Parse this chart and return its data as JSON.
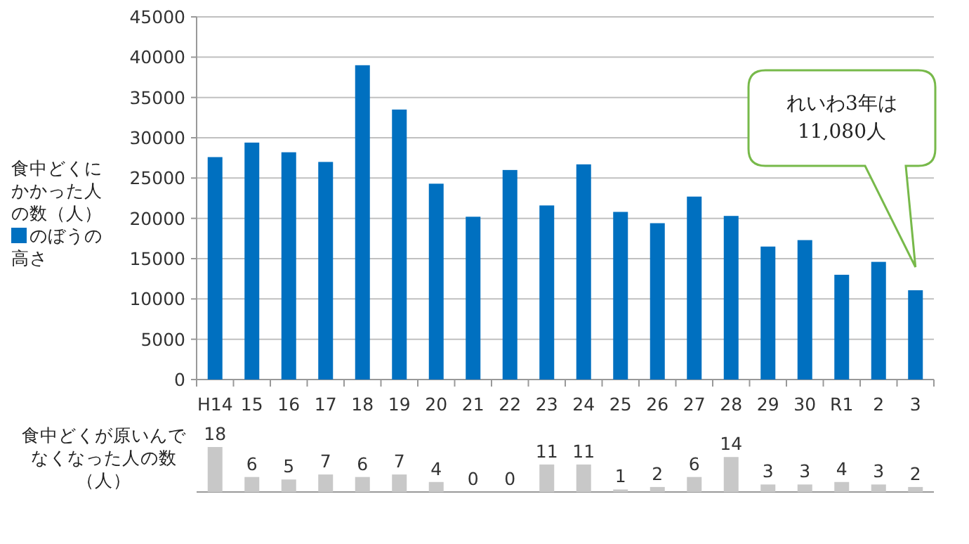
{
  "chart_data": [
    {
      "type": "bar",
      "ylabel": "食中どくにかかった人の数（人）",
      "categories": [
        "H14",
        "15",
        "16",
        "17",
        "18",
        "19",
        "20",
        "21",
        "22",
        "23",
        "24",
        "25",
        "26",
        "27",
        "28",
        "29",
        "30",
        "R1",
        "2",
        "3"
      ],
      "series": [
        {
          "name": "のぼうの高さ",
          "color": "#0070c0",
          "values": [
            27600,
            29400,
            28200,
            27000,
            39000,
            33500,
            24300,
            20200,
            26000,
            21600,
            26700,
            20800,
            19400,
            22700,
            20300,
            16500,
            17300,
            13000,
            14600,
            11080
          ]
        }
      ],
      "ylim": [
        0,
        45000
      ],
      "yticks": [
        0,
        5000,
        10000,
        15000,
        20000,
        25000,
        30000,
        35000,
        40000,
        45000
      ],
      "grid": "y",
      "legend": "left",
      "annotations": [
        "れいわ3年は 11,080人"
      ]
    },
    {
      "type": "bar",
      "ylabel": "食中どくが原いんでなくなった人の数（人）",
      "categories": [
        null,
        null,
        null,
        null,
        null,
        null,
        null,
        null,
        null,
        null,
        null,
        null,
        null,
        null,
        null,
        null,
        null,
        null,
        null,
        null
      ],
      "values": [
        18,
        6,
        5,
        7,
        6,
        7,
        4,
        0,
        0,
        11,
        11,
        1,
        2,
        6,
        14,
        3,
        3,
        4,
        3,
        2
      ],
      "color": "#c8c8c8",
      "data_labels": true
    }
  ]
}
